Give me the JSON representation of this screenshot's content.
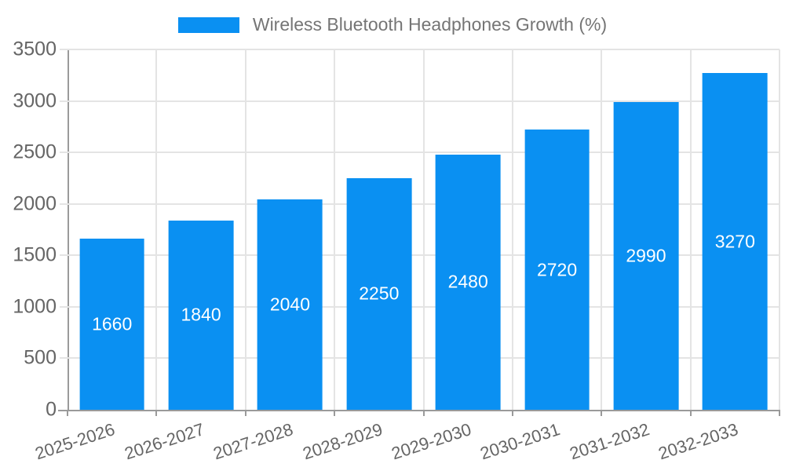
{
  "legend": {
    "label": "Wireless Bluetooth Headphones Growth (%)"
  },
  "colors": {
    "bar": "#0a90f2",
    "grid": "#e4e4e4",
    "axis": "#9a9a9a",
    "tick-text": "#656565",
    "legend-text": "#757575",
    "bar-label": "#ffffff",
    "bg": "#ffffff"
  },
  "chart_data": {
    "type": "bar",
    "title": "Wireless Bluetooth Headphones Growth (%)",
    "categories": [
      "2025-2026",
      "2026-2027",
      "2027-2028",
      "2028-2029",
      "2029-2030",
      "2030-2031",
      "2031-2032",
      "2032-2033"
    ],
    "values": [
      1660,
      1840,
      2040,
      2250,
      2480,
      2720,
      2990,
      3270
    ],
    "series": [
      {
        "name": "Wireless Bluetooth Headphones Growth (%)",
        "values": [
          1660,
          1840,
          2040,
          2250,
          2480,
          2720,
          2990,
          3270
        ]
      }
    ],
    "xlabel": "",
    "ylabel": "",
    "ylim": [
      0,
      3500
    ],
    "ytick_step": 500,
    "yticks": [
      0,
      500,
      1000,
      1500,
      2000,
      2500,
      3000,
      3500
    ],
    "grid": true,
    "legend_position": "top-center",
    "bar_value_labels": "inside-middle",
    "x_label_rotation_deg": -18
  }
}
